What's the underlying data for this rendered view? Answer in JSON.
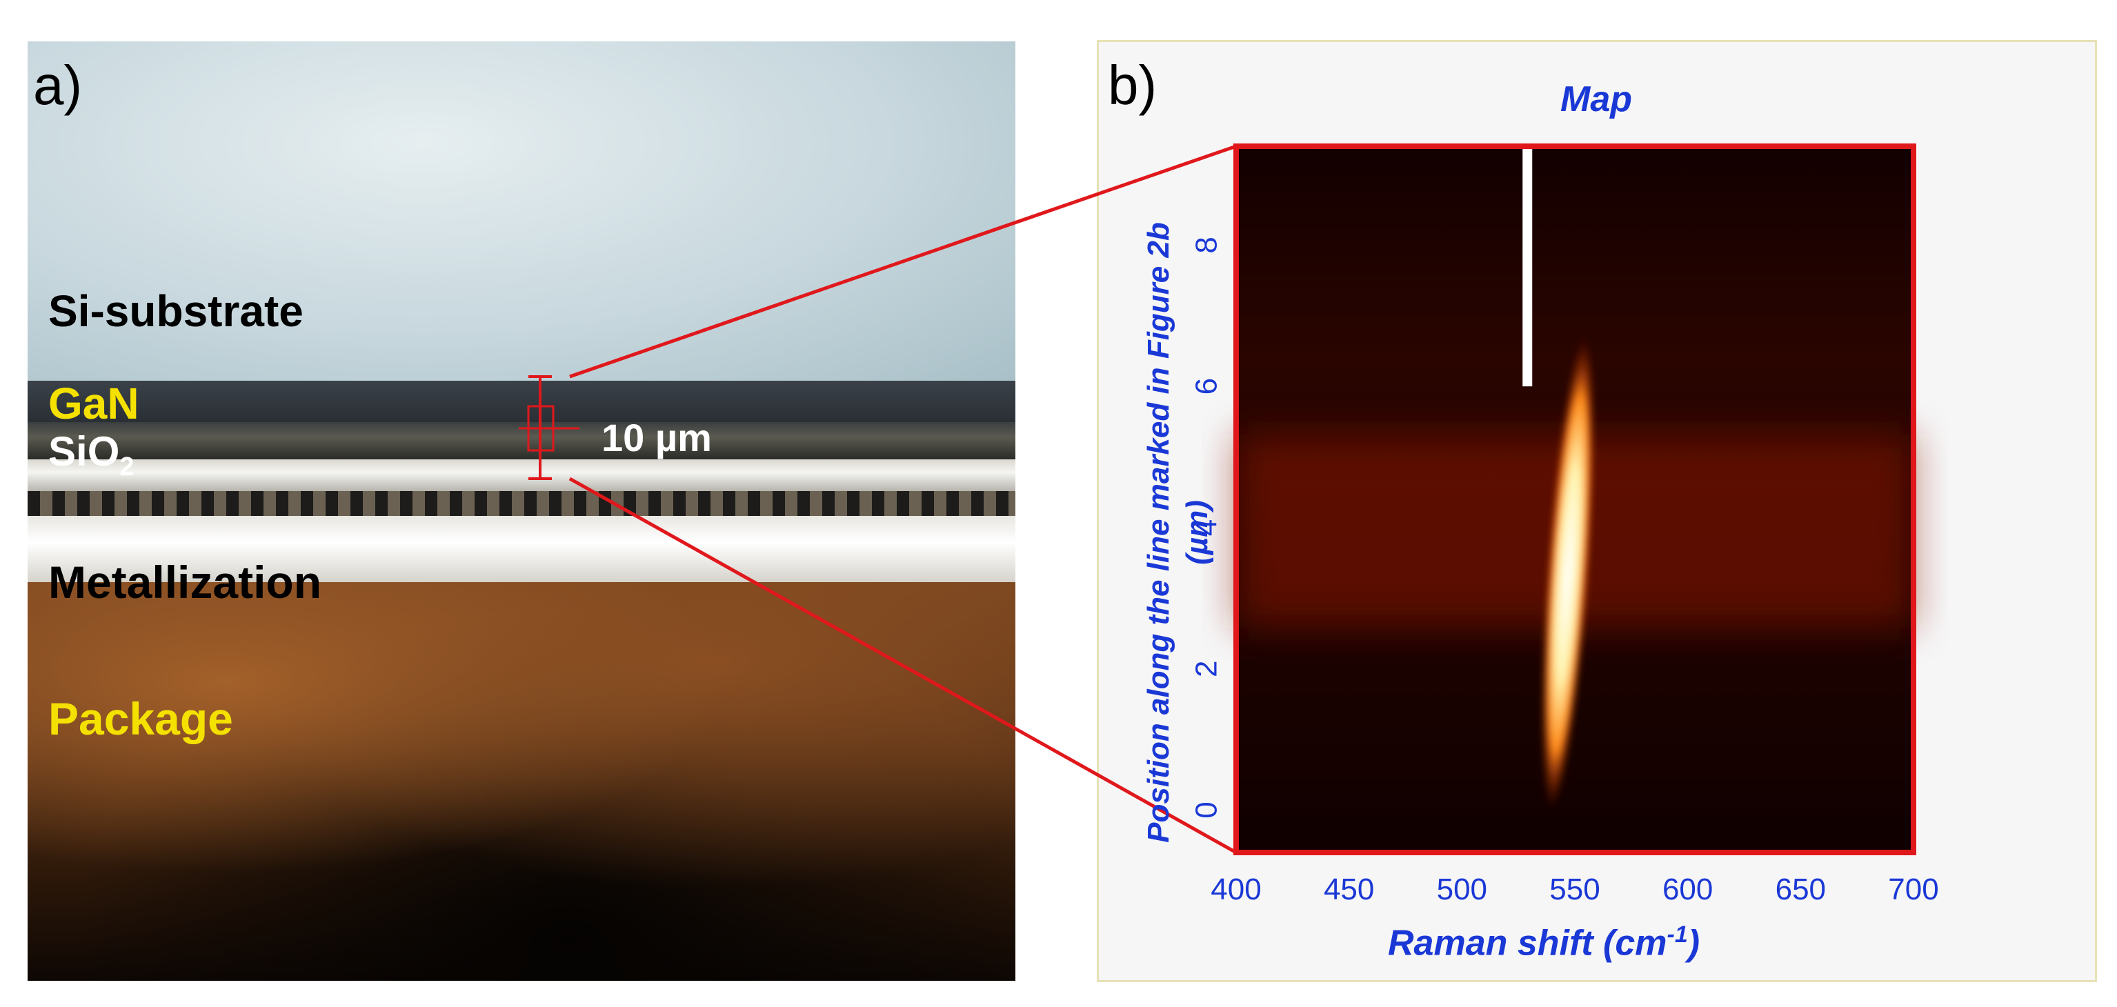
{
  "panel_a": {
    "label": "a)",
    "layers": {
      "si_substrate": "Si-substrate",
      "gan": "GaN",
      "sio2_base": "SiO",
      "sio2_sub": "2",
      "metallization": "Metallization",
      "package": "Package"
    },
    "scale_bar": "10 µm",
    "colors": {
      "label_yellow": "#f5e100",
      "marker_red": "#e0181c"
    }
  },
  "panel_b": {
    "label": "b)",
    "title": "Map",
    "colors": {
      "axis_blue": "#1a38d6",
      "frame_red": "#e0181c"
    },
    "chart_data": {
      "type": "heatmap",
      "title": "Map",
      "xlabel": "Raman shift (cm-1)",
      "ylabel": "Position along the line marked in Figure 2b (µm)",
      "xlim": [
        400,
        700
      ],
      "ylim": [
        -0.6,
        9.4
      ],
      "xticks": [
        400,
        450,
        500,
        550,
        600,
        650,
        700
      ],
      "yticks": [
        0,
        2,
        4,
        6,
        8
      ],
      "colormap": "black-red-yellow-white",
      "features": [
        {
          "name": "",
          "x_center": 529,
          "y_range": [
            6.0,
            9.4
          ],
          "intensity": "high"
        },
        {
          "name": "",
          "x_center": 547,
          "y_range": [
            0,
            6.7
          ],
          "intensity": "high"
        },
        {
          "name": "",
          "x_range": [
            400,
            700
          ],
          "y_center": 4.6,
          "intensity": "low"
        }
      ]
    },
    "xlabel_main": "Raman shift (cm",
    "xlabel_sup": "-1",
    "xlabel_close": ")",
    "ylabel_line1": "Position along the line marked in Figure 2b",
    "ylabel_line2": "(µm)"
  }
}
